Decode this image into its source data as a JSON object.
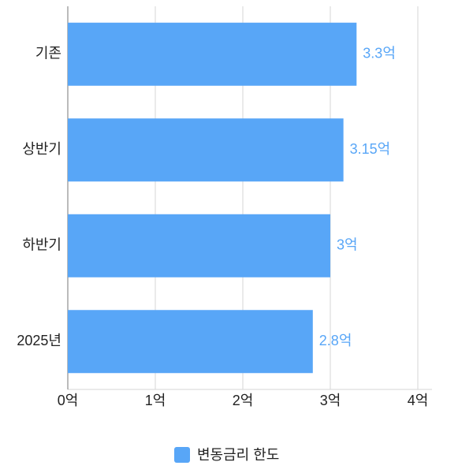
{
  "chart_data": {
    "type": "bar",
    "orientation": "horizontal",
    "categories": [
      "기존",
      "상반기",
      "하반기",
      "2025년"
    ],
    "series": [
      {
        "name": "변동금리 한도",
        "color": "#58a6f7",
        "values": [
          3.3,
          3.15,
          3,
          2.8
        ],
        "value_labels": [
          "3.3억",
          "3.15억",
          "3억",
          "2.8억"
        ]
      }
    ],
    "xlim": [
      0,
      4
    ],
    "xticks": [
      {
        "value": 0,
        "label": "0억"
      },
      {
        "value": 1,
        "label": "1억"
      },
      {
        "value": 2,
        "label": "2억"
      },
      {
        "value": 3,
        "label": "3억"
      },
      {
        "value": 4,
        "label": "4억"
      }
    ],
    "grid": true,
    "legend": "bottom"
  }
}
